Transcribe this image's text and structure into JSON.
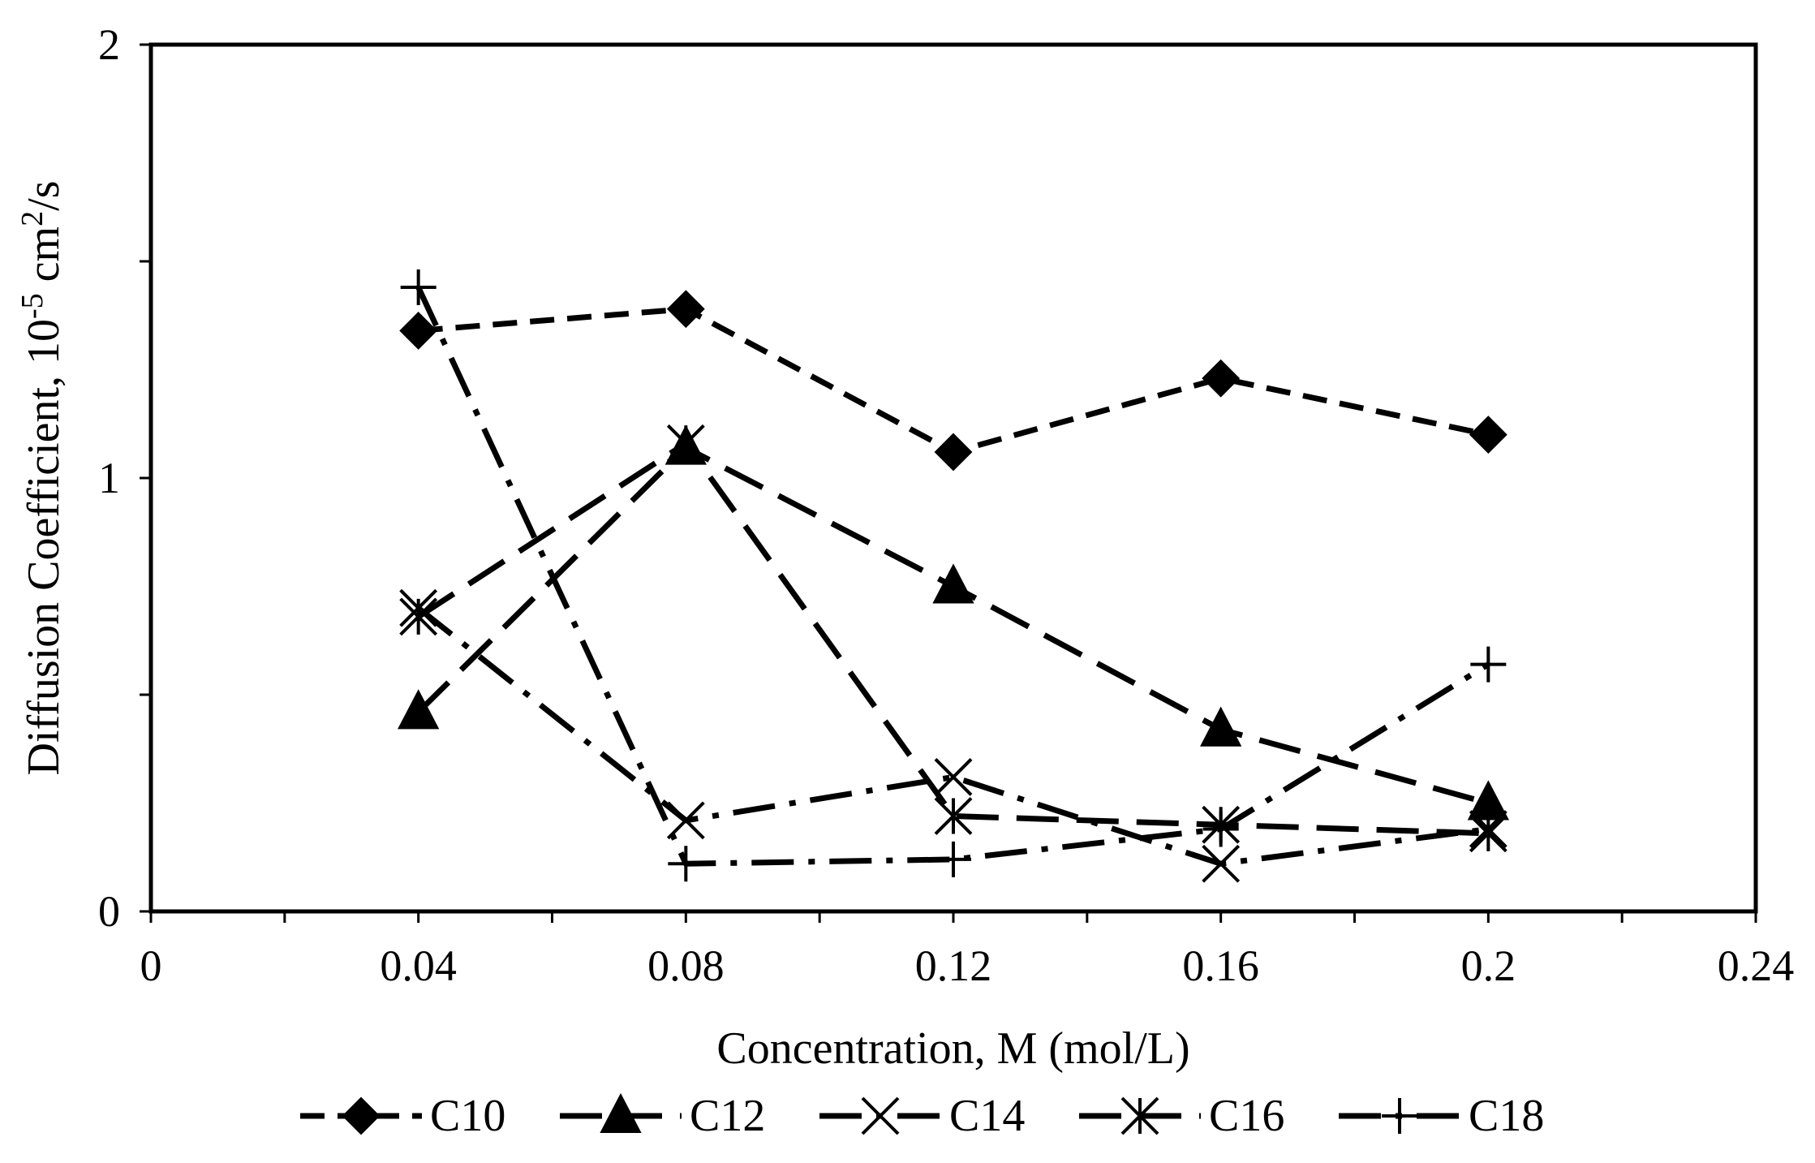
{
  "chart_data": {
    "type": "line",
    "title": "",
    "xlabel": "Concentration, M (mol/L)",
    "ylabel_parts": {
      "prefix": "Diffusion Coefficient, 10",
      "exp1": "-5",
      "mid": " cm",
      "exp2": "2",
      "suffix": "/s"
    },
    "xlim": [
      0,
      0.24
    ],
    "ylim": [
      0,
      2
    ],
    "x_ticks": [
      0,
      0.04,
      0.08,
      0.12,
      0.16,
      0.2,
      0.24
    ],
    "x_tick_labels": [
      "0",
      "0.04",
      "0.08",
      "0.12",
      "0.16",
      "0.2",
      "0.24"
    ],
    "y_ticks": [
      0,
      1,
      2
    ],
    "y_tick_labels": [
      "0",
      "1",
      "2"
    ],
    "grid": false,
    "legend_position": "bottom",
    "series": [
      {
        "name": "C10",
        "marker": "diamond",
        "dash": "short-dash",
        "x": [
          0.04,
          0.08,
          0.12,
          0.16,
          0.2
        ],
        "y": [
          1.34,
          1.39,
          1.06,
          1.23,
          1.1
        ]
      },
      {
        "name": "C12",
        "marker": "triangle",
        "dash": "long-dash",
        "x": [
          0.04,
          0.08,
          0.12,
          0.16,
          0.2
        ],
        "y": [
          0.46,
          1.07,
          0.75,
          0.42,
          0.25
        ]
      },
      {
        "name": "C14",
        "marker": "x",
        "dash": "long-dash-dot",
        "x": [
          0.04,
          0.08,
          0.12,
          0.16,
          0.2
        ],
        "y": [
          0.7,
          0.21,
          0.31,
          0.11,
          0.19
        ]
      },
      {
        "name": "C16",
        "marker": "star",
        "dash": "long-dash",
        "x": [
          0.04,
          0.08,
          0.12,
          0.16,
          0.2
        ],
        "y": [
          0.68,
          1.08,
          0.22,
          0.2,
          0.18
        ]
      },
      {
        "name": "C18",
        "marker": "plus",
        "dash": "long-dash-dot",
        "x": [
          0.04,
          0.08,
          0.12,
          0.16,
          0.2
        ],
        "y": [
          1.44,
          0.11,
          0.12,
          0.19,
          0.57
        ]
      }
    ]
  }
}
